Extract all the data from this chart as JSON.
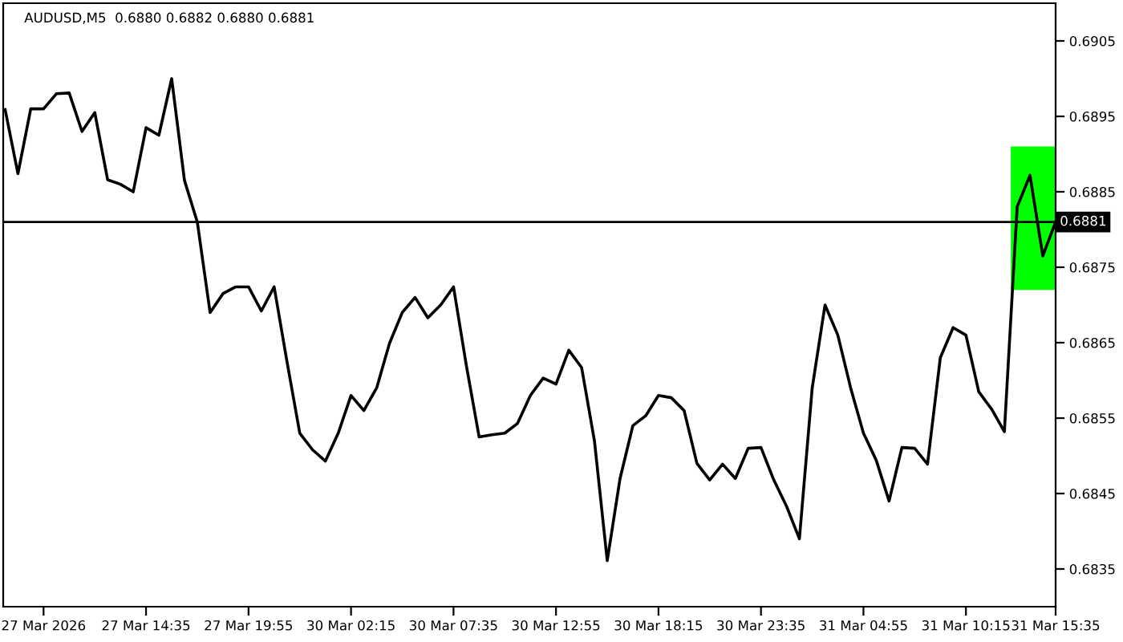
{
  "chart_data": {
    "type": "line",
    "title": "AUDUSD,M5  0.6880 0.6882 0.6880 0.6881",
    "categories": [
      null,
      null,
      null,
      "27 Mar 2026",
      null,
      null,
      null,
      null,
      null,
      null,
      null,
      "27 Mar 14:35",
      null,
      null,
      null,
      null,
      null,
      null,
      null,
      "27 Mar 19:55",
      null,
      null,
      null,
      null,
      null,
      null,
      null,
      "30 Mar 02:15",
      null,
      null,
      null,
      null,
      null,
      null,
      null,
      "30 Mar 07:35",
      null,
      null,
      null,
      null,
      null,
      null,
      null,
      "30 Mar 12:55",
      null,
      null,
      null,
      null,
      null,
      null,
      null,
      "30 Mar 18:15",
      null,
      null,
      null,
      null,
      null,
      null,
      null,
      "30 Mar 23:35",
      null,
      null,
      null,
      null,
      null,
      null,
      null,
      "31 Mar 04:55",
      null,
      null,
      null,
      null,
      null,
      null,
      null,
      "31 Mar 10:15",
      null,
      null,
      null,
      null,
      null,
      null,
      "31 Mar 15:35"
    ],
    "series": [
      {
        "color": "#000000",
        "values": [
          0.68959,
          0.68874,
          0.6896,
          0.6896,
          0.6898,
          0.68981,
          0.6893,
          0.68955,
          0.68866,
          0.6886,
          0.6885,
          0.68935,
          0.68925,
          0.69,
          0.68865,
          0.6881,
          0.6869,
          0.68715,
          0.68724,
          0.68724,
          0.68692,
          0.68724,
          0.68625,
          0.6853,
          0.68508,
          0.68493,
          0.6853,
          0.6858,
          0.6856,
          0.6859,
          0.68649,
          0.6869,
          0.6871,
          0.68683,
          0.687,
          0.68724,
          0.6862,
          0.68525,
          0.68528,
          0.6853,
          0.68543,
          0.6858,
          0.68603,
          0.68595,
          0.6864,
          0.68617,
          0.6852,
          0.68361,
          0.6847,
          0.6854,
          0.68553,
          0.6858,
          0.68577,
          0.6856,
          0.6849,
          0.68468,
          0.68489,
          0.6847,
          0.6851,
          0.68511,
          0.68468,
          0.68433,
          0.6839,
          0.6859,
          0.687,
          0.6866,
          0.6859,
          0.6853,
          0.68494,
          0.6844,
          0.68511,
          0.6851,
          0.68489,
          0.6863,
          0.6867,
          0.6866,
          0.68585,
          0.68562,
          0.68532,
          0.6883,
          0.68872,
          0.68765,
          0.6881
        ]
      }
    ],
    "ylim": [
      0.683,
      0.691
    ],
    "yticks": [
      {
        "value": 0.6835,
        "label": "0.6835"
      },
      {
        "value": 0.6845,
        "label": "0.6845"
      },
      {
        "value": 0.6855,
        "label": "0.6855"
      },
      {
        "value": 0.6865,
        "label": "0.6865"
      },
      {
        "value": 0.6875,
        "label": "0.6875"
      },
      {
        "value": 0.6885,
        "label": "0.6885"
      },
      {
        "value": 0.6895,
        "label": "0.6895"
      },
      {
        "value": 0.6905,
        "label": "0.6905"
      }
    ],
    "ref_lines": [
      {
        "axis": "y",
        "value": 0.6881,
        "label": "0.6881",
        "color": "#000000"
      }
    ],
    "bands": [
      {
        "axis": "y",
        "from": 0.6872,
        "to": 0.6891,
        "color": "#00ff00"
      }
    ],
    "grid": false,
    "legend": false,
    "marker": "none",
    "line_style": "solid"
  }
}
